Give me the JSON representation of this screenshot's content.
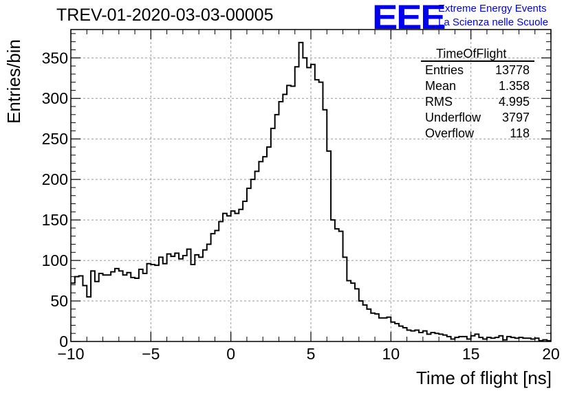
{
  "header": {
    "title": "TREV-01-2020-03-03-00005",
    "logo_text": "EEE",
    "logo_line1": "Extreme Energy Events",
    "logo_line2": "La Scienza nelle Scuole"
  },
  "stats": {
    "title": "TimeOfFlight",
    "rows": [
      {
        "label": "Entries",
        "value": "13778"
      },
      {
        "label": "Mean",
        "value": "1.358"
      },
      {
        "label": "RMS",
        "value": "4.995"
      },
      {
        "label": "Underflow",
        "value": "3797"
      },
      {
        "label": "Overflow",
        "value": "118"
      }
    ]
  },
  "chart_data": {
    "type": "bar",
    "subtype": "step-histogram",
    "title": "TREV-01-2020-03-03-00005",
    "xlabel": "Time of flight [ns]",
    "ylabel": "Entries/bin",
    "xlim": [
      -10,
      20
    ],
    "ylim": [
      0,
      385
    ],
    "bin_width": 0.25,
    "grid": true,
    "x_ticks": [
      -10,
      -5,
      0,
      5,
      10,
      15,
      20
    ],
    "x_tick_labels": [
      "−10",
      "−5",
      "0",
      "5",
      "10",
      "15",
      "20"
    ],
    "y_ticks": [
      0,
      50,
      100,
      150,
      200,
      250,
      300,
      350
    ],
    "y_tick_labels": [
      "0",
      "50",
      "100",
      "150",
      "200",
      "250",
      "300",
      "350"
    ],
    "values": [
      72,
      80,
      81,
      69,
      55,
      87,
      74,
      84,
      82,
      82,
      86,
      90,
      87,
      82,
      85,
      79,
      78,
      89,
      84,
      96,
      95,
      94,
      104,
      96,
      108,
      105,
      109,
      102,
      106,
      114,
      95,
      107,
      104,
      113,
      120,
      133,
      137,
      148,
      158,
      155,
      161,
      158,
      163,
      173,
      189,
      200,
      210,
      222,
      228,
      240,
      263,
      280,
      296,
      305,
      316,
      315,
      339,
      369,
      350,
      338,
      342,
      323,
      320,
      286,
      235,
      150,
      139,
      136,
      104,
      75,
      72,
      65,
      50,
      45,
      40,
      35,
      34,
      29,
      29,
      30,
      24,
      22,
      19,
      17,
      14,
      13,
      14,
      11,
      13,
      9,
      11,
      10,
      9,
      8,
      6,
      3,
      5,
      6,
      6,
      3,
      7,
      9,
      5,
      3,
      5,
      4,
      5,
      7,
      2,
      6,
      5,
      4,
      5,
      4,
      4,
      3,
      4,
      1,
      2,
      1
    ]
  }
}
